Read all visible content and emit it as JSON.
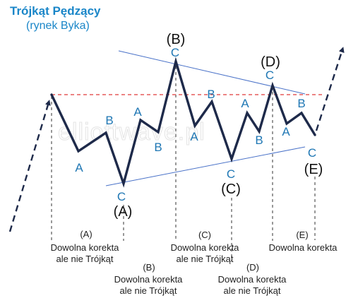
{
  "title": "Trójkąt Pędzący",
  "subtitle": "(rynek Byka)",
  "watermark": "elliottwave.pl",
  "colors": {
    "title": "#1a86c8",
    "wave": "#1e2a4a",
    "label": "#1f77b4",
    "trendline": "#4a72c8",
    "resistance": "#e03a3a",
    "guide": "#333333"
  },
  "wave_labels": {
    "A1": "A",
    "B1": "B",
    "C1": "C",
    "A2": "A",
    "B2": "B",
    "C2": "C",
    "A3": "A",
    "B3": "B",
    "C3": "C",
    "A4": "A",
    "B4": "B",
    "C4": "C",
    "A5": "A",
    "B5": "B",
    "C5": "C"
  },
  "major_labels": {
    "A": "(A)",
    "B": "(B)",
    "C": "(C)",
    "D": "(D)",
    "E": "(E)"
  },
  "captions": {
    "a_tag": "(A)",
    "a_line1": "Dowolna korekta",
    "a_line2": "ale nie Trójkąt",
    "b_tag": "(B)",
    "b_line1": "Dowolna korekta",
    "b_line2": "ale nie Trójkąt",
    "c_tag": "(C)",
    "c_line1": "Dowolna korekta",
    "c_line2": "ale nie Trójkąt",
    "d_tag": "(D)",
    "d_line1": "Dowolna korekta",
    "d_line2": "ale nie Trójkąt",
    "e_tag": "(E)",
    "e_line1": "Dowolna korekta"
  }
}
